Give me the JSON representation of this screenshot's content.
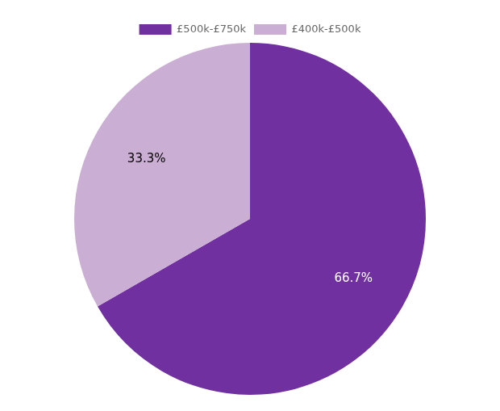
{
  "chart_data": {
    "type": "pie",
    "categories": [
      "£500k-£750k",
      "£400k-£500k"
    ],
    "values": [
      66.7,
      33.3
    ],
    "value_labels": [
      "66.7%",
      "33.3%"
    ],
    "colors": [
      "#7030a0",
      "#cbaed4"
    ],
    "data_labels": true,
    "legend": "top"
  }
}
